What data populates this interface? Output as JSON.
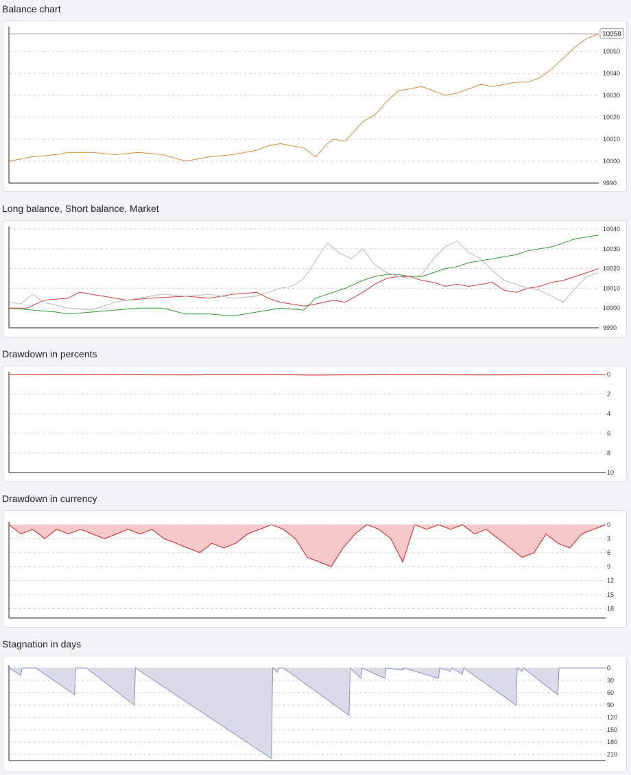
{
  "colors": {
    "page_bg": "#f3f4f6",
    "panel_bg": "#ffffff",
    "grid": "#cfd2d6",
    "axis": "#222222",
    "balance_line": "#d68a3a",
    "balance_line_dark": "#555555",
    "long_balance": "#2e9e2e",
    "short_balance": "#d23a3a",
    "market": "#b8b8b8",
    "drawdown_line": "#d21e1e",
    "drawdown_fill": "#f6c9c9",
    "stagnation_line": "#8a8fc0",
    "stagnation_fill": "#dadbe8"
  },
  "chart_data": [
    {
      "id": "balance",
      "type": "line",
      "title": "Balance chart",
      "ylim": [
        9990,
        10060
      ],
      "yticks": [
        9990,
        10000,
        10010,
        10020,
        10030,
        10040,
        10050
      ],
      "value_label": "10058",
      "grid": true,
      "series": [
        {
          "x": [
            0,
            0.04,
            0.08,
            0.1,
            0.14,
            0.18,
            0.22,
            0.26,
            0.3,
            0.34,
            0.38,
            0.42,
            0.44,
            0.46,
            0.5,
            0.52,
            0.54,
            0.55,
            0.57,
            0.6,
            0.62,
            0.64,
            0.66,
            0.68,
            0.7,
            0.72,
            0.74,
            0.76,
            0.78,
            0.8,
            0.82,
            0.84,
            0.86,
            0.88,
            0.9,
            0.92,
            0.94,
            0.96,
            0.98,
            1.0
          ],
          "values": [
            10000,
            10002,
            10003,
            10004,
            10004,
            10003,
            10004,
            10003,
            10000,
            10002,
            10003,
            10005,
            10007,
            10008,
            10006,
            10002,
            10008,
            10010,
            10009,
            10018,
            10021,
            10027,
            10032,
            10033,
            10034,
            10032,
            10030,
            10031,
            10033,
            10035,
            10034,
            10035,
            10036,
            10036,
            10038,
            10042,
            10047,
            10052,
            10056,
            10058
          ]
        }
      ]
    },
    {
      "id": "long_short_market",
      "type": "line",
      "title": "Long balance, Short balance, Market",
      "ylim": [
        9990,
        10040
      ],
      "yticks": [
        9990,
        10000,
        10010,
        10020,
        10030,
        10040
      ],
      "grid": true,
      "series": [
        {
          "x": [
            0,
            0.04,
            0.08,
            0.1,
            0.14,
            0.18,
            0.22,
            0.26,
            0.3,
            0.34,
            0.38,
            0.42,
            0.44,
            0.46,
            0.5,
            0.52,
            0.55,
            0.57,
            0.6,
            0.62,
            0.64,
            0.66,
            0.68,
            0.7,
            0.72,
            0.74,
            0.76,
            0.78,
            0.8,
            0.82,
            0.84,
            0.86,
            0.88,
            0.9,
            0.92,
            0.94,
            0.96,
            0.98,
            1.0
          ],
          "values": [
            10000,
            9999,
            9998,
            9997,
            9998,
            9999,
            10000,
            10000,
            9997,
            9997,
            9996,
            9998,
            9999,
            10000,
            9999,
            10005,
            10008,
            10010,
            10014,
            10016,
            10017,
            10017,
            10016,
            10016,
            10018,
            10020,
            10021,
            10023,
            10024,
            10025,
            10026,
            10027,
            10029,
            10030,
            10031,
            10033,
            10035,
            10036,
            10037
          ]
        },
        {
          "x": [
            0,
            0.03,
            0.06,
            0.1,
            0.12,
            0.16,
            0.2,
            0.24,
            0.3,
            0.34,
            0.38,
            0.42,
            0.44,
            0.46,
            0.5,
            0.52,
            0.55,
            0.57,
            0.6,
            0.62,
            0.64,
            0.66,
            0.68,
            0.7,
            0.72,
            0.74,
            0.76,
            0.78,
            0.8,
            0.82,
            0.84,
            0.86,
            0.88,
            0.9,
            0.92,
            0.94,
            0.96,
            0.98,
            1.0
          ],
          "values": [
            10000,
            10000,
            10004,
            10005,
            10008,
            10006,
            10004,
            10005,
            10006,
            10005,
            10007,
            10008,
            10005,
            10003,
            10001,
            10002,
            10004,
            10003,
            10008,
            10012,
            10015,
            10016,
            10016,
            10014,
            10013,
            10011,
            10012,
            10011,
            10012,
            10013,
            10009,
            10008,
            10010,
            10011,
            10013,
            10014,
            10016,
            10018,
            10020
          ]
        },
        {
          "x": [
            0,
            0.02,
            0.04,
            0.06,
            0.1,
            0.14,
            0.18,
            0.22,
            0.26,
            0.3,
            0.34,
            0.38,
            0.42,
            0.44,
            0.46,
            0.48,
            0.5,
            0.52,
            0.54,
            0.56,
            0.58,
            0.6,
            0.62,
            0.64,
            0.66,
            0.68,
            0.7,
            0.72,
            0.74,
            0.76,
            0.78,
            0.8,
            0.82,
            0.84,
            0.86,
            0.88,
            0.9,
            0.92,
            0.94,
            0.96,
            0.98,
            1.0
          ],
          "values": [
            10003,
            10002,
            10007,
            10003,
            10000,
            9999,
            10003,
            10005,
            10007,
            10006,
            10007,
            10005,
            10006,
            10008,
            10010,
            10011,
            10015,
            10024,
            10033,
            10028,
            10025,
            10030,
            10022,
            10018,
            10016,
            10015,
            10017,
            10025,
            10031,
            10034,
            10028,
            10025,
            10019,
            10014,
            10012,
            10010,
            10009,
            10006,
            10003,
            10010,
            10016,
            10018
          ]
        }
      ]
    },
    {
      "id": "drawdown_percent",
      "type": "area",
      "title": "Drawdown in percents",
      "ylim": [
        0,
        10
      ],
      "yticks": [
        0,
        2,
        4,
        6,
        8,
        10
      ],
      "inverted": true,
      "grid": true,
      "series": [
        {
          "x": [
            0,
            0.05,
            0.1,
            0.15,
            0.2,
            0.25,
            0.3,
            0.35,
            0.4,
            0.45,
            0.5,
            0.55,
            0.6,
            0.65,
            0.7,
            0.75,
            0.8,
            0.85,
            0.9,
            0.95,
            1.0
          ],
          "values": [
            0,
            0.02,
            0.03,
            0.02,
            0.03,
            0.04,
            0.05,
            0.03,
            0.02,
            0.03,
            0.06,
            0.05,
            0.04,
            0.02,
            0.03,
            0.04,
            0.05,
            0.04,
            0.03,
            0.02,
            0
          ]
        }
      ]
    },
    {
      "id": "drawdown_currency",
      "type": "area",
      "title": "Drawdown in currency",
      "ylim": [
        0,
        20
      ],
      "yticks": [
        0,
        3,
        6,
        9,
        12,
        15,
        18
      ],
      "inverted": true,
      "grid": true,
      "series": [
        {
          "x": [
            0,
            0.02,
            0.04,
            0.06,
            0.08,
            0.1,
            0.12,
            0.14,
            0.16,
            0.18,
            0.2,
            0.22,
            0.24,
            0.26,
            0.28,
            0.3,
            0.32,
            0.34,
            0.36,
            0.38,
            0.4,
            0.42,
            0.44,
            0.46,
            0.48,
            0.5,
            0.52,
            0.54,
            0.56,
            0.58,
            0.6,
            0.62,
            0.64,
            0.66,
            0.68,
            0.7,
            0.72,
            0.74,
            0.76,
            0.78,
            0.8,
            0.82,
            0.84,
            0.86,
            0.88,
            0.9,
            0.92,
            0.94,
            0.96,
            0.98,
            1.0
          ],
          "values": [
            0,
            2,
            1,
            3,
            1,
            2,
            1,
            2,
            3,
            2,
            1,
            2,
            1,
            3,
            4,
            5,
            6,
            4,
            5,
            4,
            2,
            1,
            0,
            1,
            3,
            7,
            8,
            9,
            5,
            2,
            0,
            1,
            3,
            8,
            0,
            1,
            0,
            1,
            0,
            2,
            1,
            3,
            5,
            7,
            6,
            2,
            4,
            5,
            2,
            1,
            0
          ]
        }
      ]
    },
    {
      "id": "stagnation_days",
      "type": "area",
      "title": "Stagnation in days",
      "ylim": [
        0,
        225
      ],
      "yticks": [
        0,
        30,
        60,
        90,
        120,
        150,
        180,
        210
      ],
      "inverted": true,
      "grid": true,
      "series": [
        {
          "x": [
            0,
            0.02,
            0.022,
            0.045,
            0.11,
            0.112,
            0.13,
            0.21,
            0.212,
            0.44,
            0.442,
            0.45,
            0.452,
            0.46,
            0.57,
            0.572,
            0.59,
            0.592,
            0.63,
            0.632,
            0.66,
            0.662,
            0.72,
            0.722,
            0.74,
            0.742,
            0.76,
            0.762,
            0.85,
            0.852,
            0.86,
            0.862,
            0.92,
            0.922,
            1.0
          ],
          "values": [
            0,
            18,
            0,
            0,
            65,
            0,
            0,
            90,
            0,
            220,
            0,
            10,
            0,
            0,
            115,
            0,
            25,
            0,
            25,
            0,
            5,
            0,
            25,
            0,
            8,
            0,
            15,
            0,
            90,
            0,
            8,
            0,
            65,
            0,
            0
          ]
        }
      ]
    }
  ]
}
